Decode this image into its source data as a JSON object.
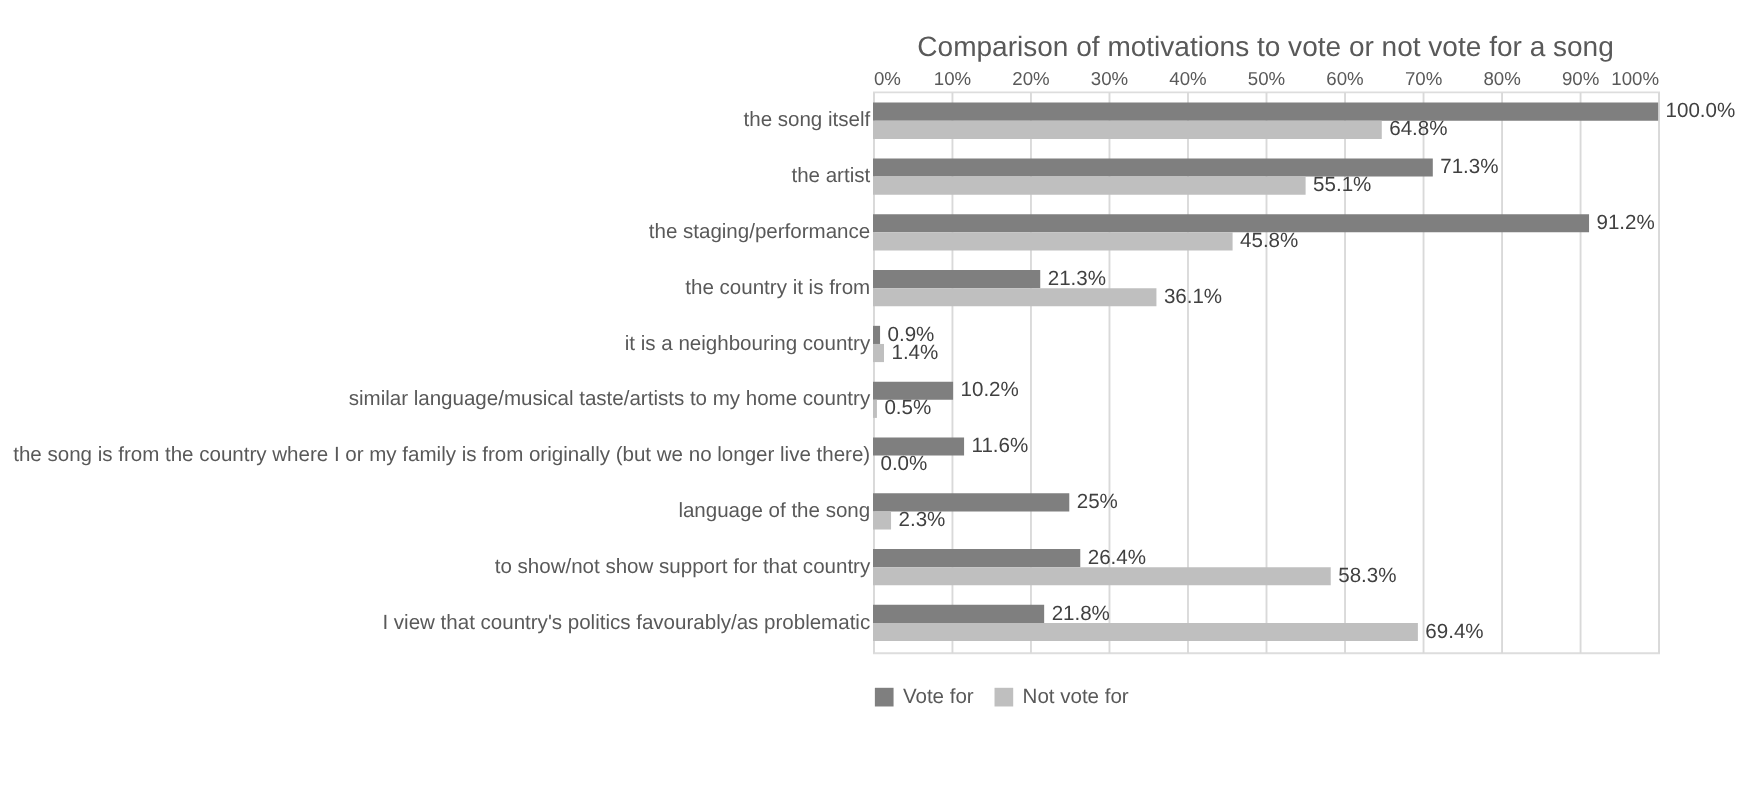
{
  "chart_data": {
    "type": "bar",
    "orientation": "horizontal",
    "title": "Comparison of motivations to vote or not vote for a song",
    "categories": [
      "the song itself",
      "the artist",
      "the staging/performance",
      "the country it is from",
      "it is a neighbouring country",
      "similar language/musical taste/artists to my home country",
      "the song is from the country where I or my family is from originally (but we no longer live there)",
      "language of the song",
      "to show/not show support for that country",
      "I view that country's politics favourably/as problematic"
    ],
    "series": [
      {
        "name": "Vote for",
        "color": "#7f7f7f",
        "values": [
          100.0,
          71.3,
          91.2,
          21.3,
          0.9,
          10.2,
          11.6,
          25,
          26.4,
          21.8
        ],
        "value_labels": [
          "100.0%",
          "71.3%",
          "91.2%",
          "21.3%",
          "0.9%",
          "10.2%",
          "11.6%",
          "25%",
          "26.4%",
          "21.8%"
        ]
      },
      {
        "name": "Not vote for",
        "color": "#bfbfbf",
        "values": [
          64.8,
          55.1,
          45.8,
          36.1,
          1.4,
          0.5,
          0.0,
          2.3,
          58.3,
          69.4
        ],
        "value_labels": [
          "64.8%",
          "55.1%",
          "45.8%",
          "36.1%",
          "1.4%",
          "0.5%",
          "0.0%",
          "2.3%",
          "58.3%",
          "69.4%"
        ]
      }
    ],
    "xlim": [
      0,
      100
    ],
    "xticks": [
      {
        "value": 0,
        "label": "0%"
      },
      {
        "value": 10,
        "label": "10%"
      },
      {
        "value": 20,
        "label": "20%"
      },
      {
        "value": 30,
        "label": "30%"
      },
      {
        "value": 40,
        "label": "40%"
      },
      {
        "value": 50,
        "label": "50%"
      },
      {
        "value": 60,
        "label": "60%"
      },
      {
        "value": 70,
        "label": "70%"
      },
      {
        "value": 80,
        "label": "80%"
      },
      {
        "value": 90,
        "label": "90%"
      },
      {
        "value": 100,
        "label": "100%"
      }
    ],
    "grid": "x",
    "legend": "bottom"
  }
}
